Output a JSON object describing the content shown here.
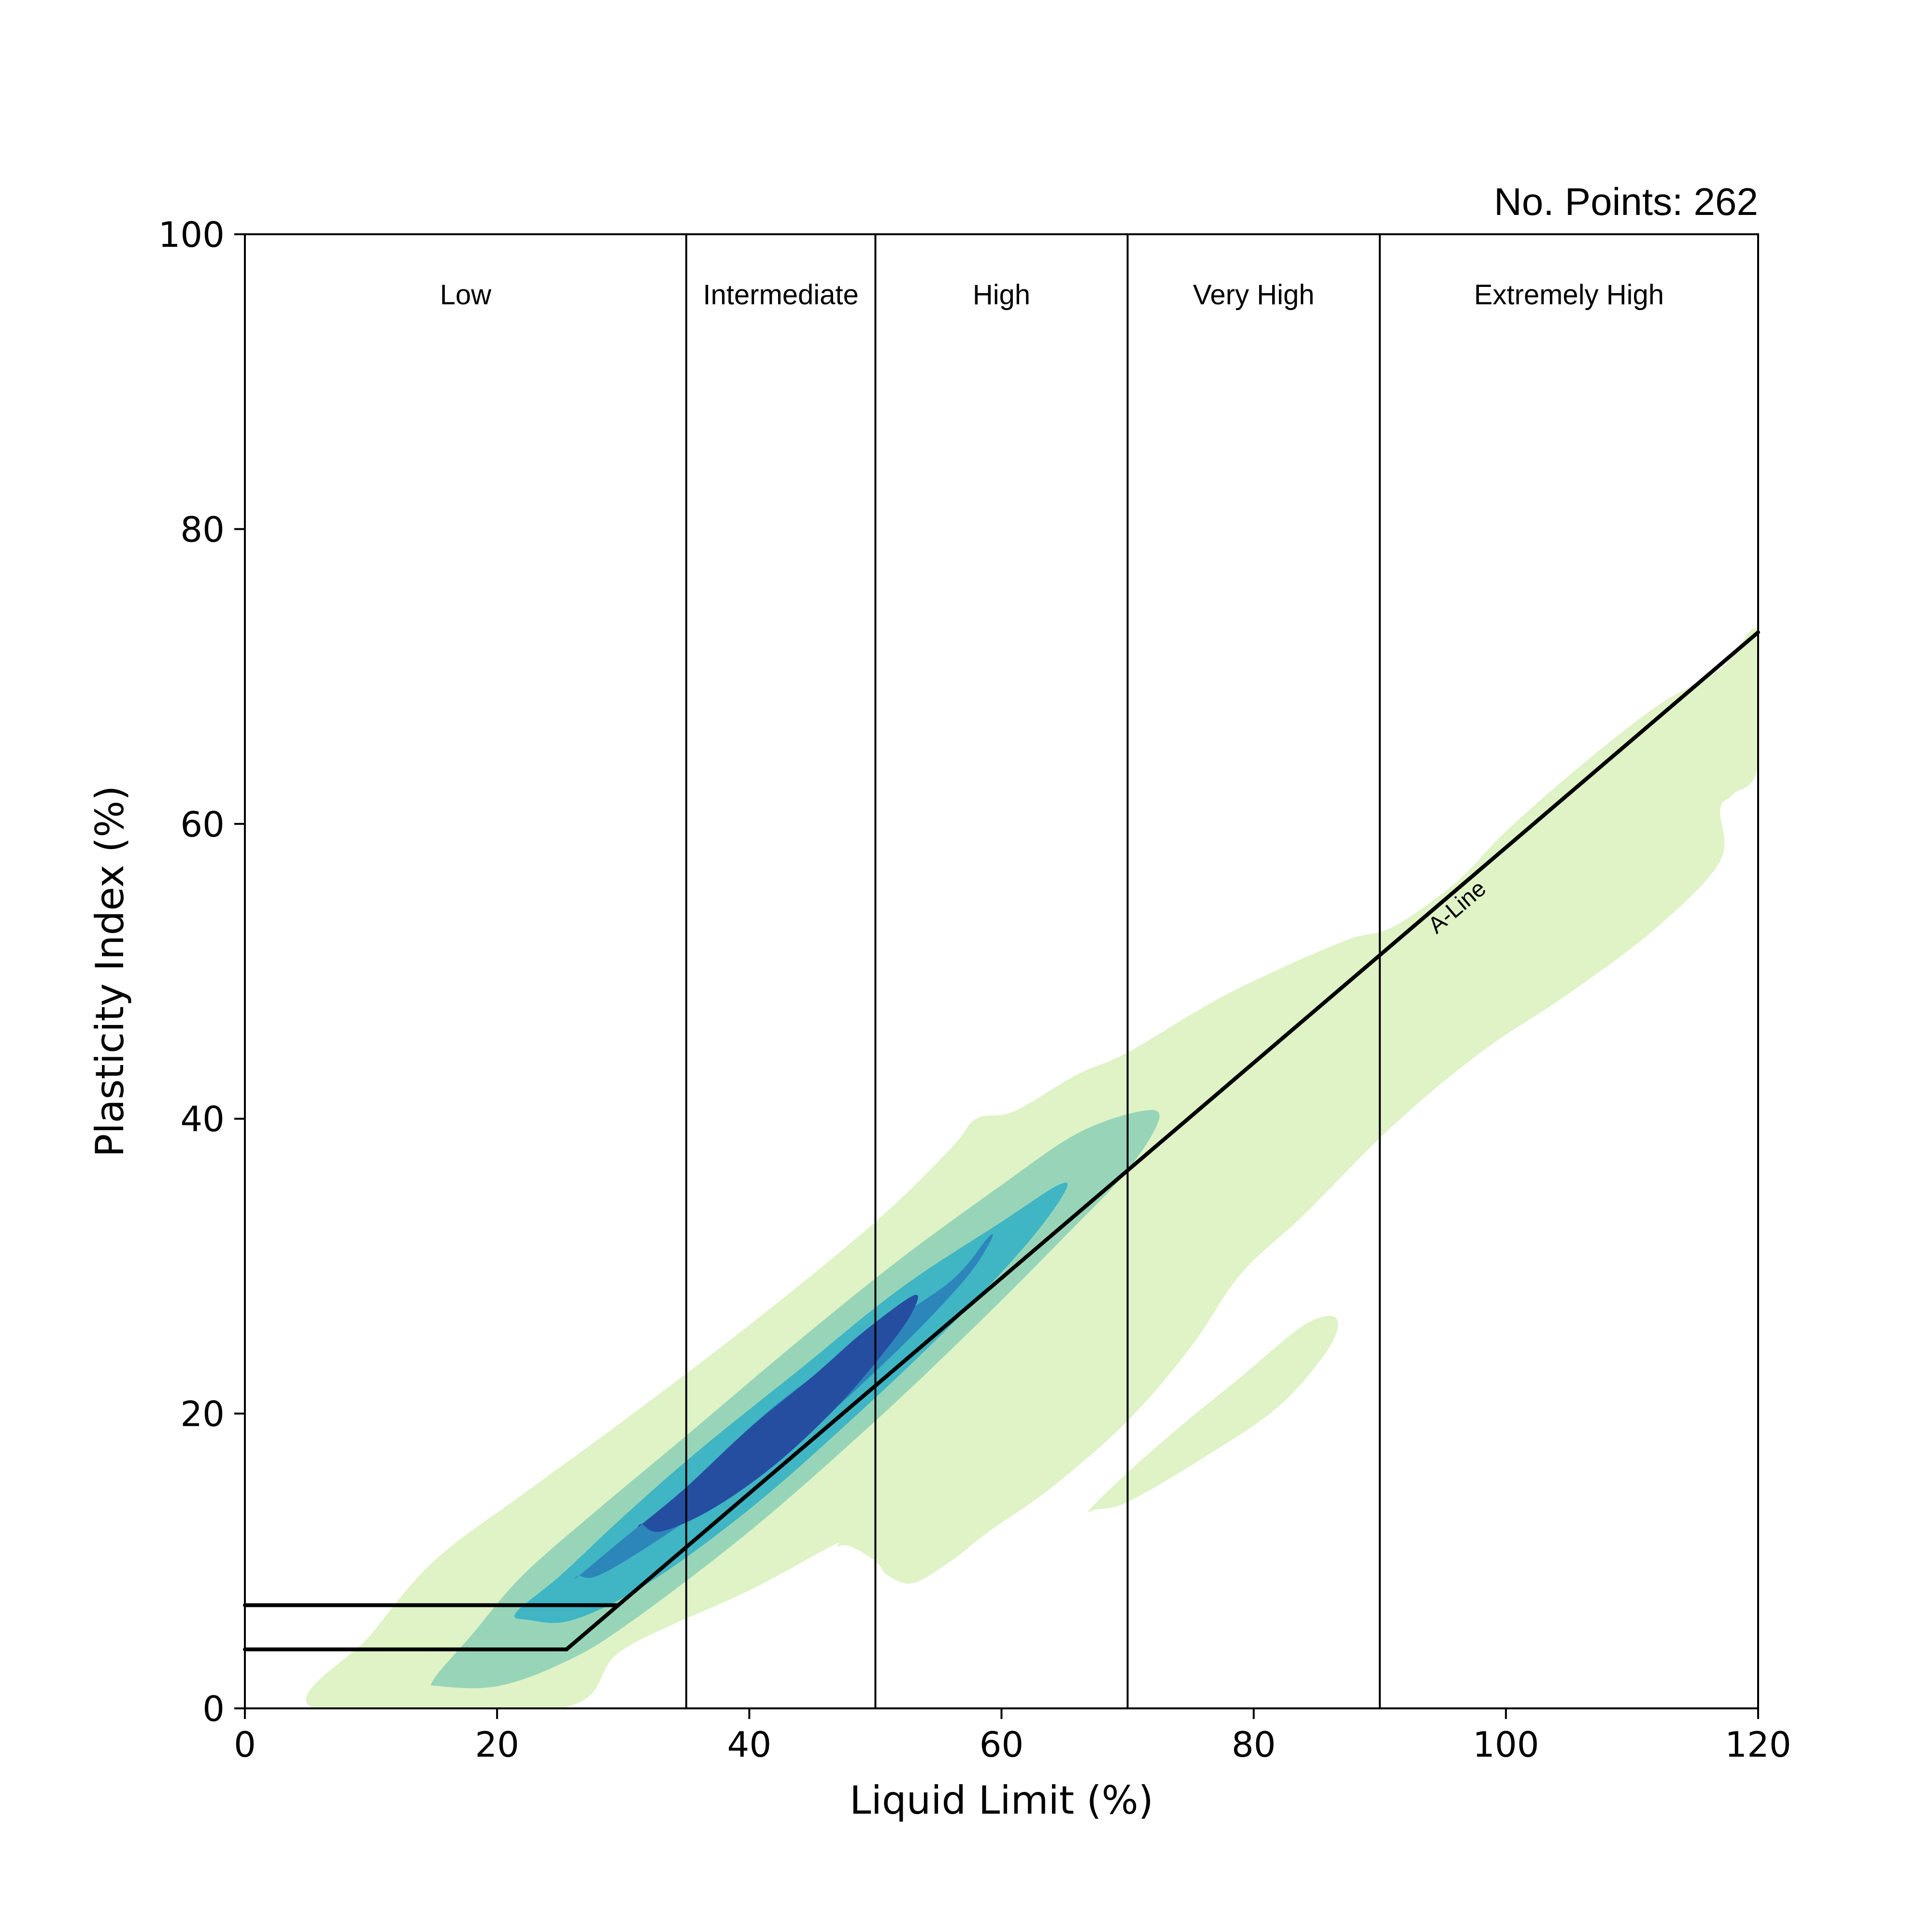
{
  "chart_data": {
    "type": "contour",
    "title": "",
    "annotation_top_right": "No. Points: 262",
    "xlabel": "Liquid Limit (%)",
    "ylabel": "Plasticity Index (%)",
    "xlim": [
      0,
      120
    ],
    "ylim": [
      0,
      100
    ],
    "xticks": [
      0,
      20,
      40,
      60,
      80,
      100,
      120
    ],
    "yticks": [
      0,
      20,
      40,
      60,
      80,
      100
    ],
    "grid": false,
    "plasticity_boundaries": [
      35,
      50,
      70,
      90
    ],
    "regions": [
      {
        "label": "Low",
        "x": 17.5
      },
      {
        "label": "Intermediate",
        "x": 42.5
      },
      {
        "label": "High",
        "x": 60
      },
      {
        "label": "Very High",
        "x": 80
      },
      {
        "label": "Extremely High",
        "x": 105
      }
    ],
    "a_line": {
      "label": "A-Line",
      "points": [
        [
          25.5,
          4
        ],
        [
          120,
          73
        ]
      ]
    },
    "horizontal_lines": [
      {
        "y": 4,
        "x": [
          0,
          25.5
        ]
      },
      {
        "y": 7,
        "x": [
          0,
          29.5
        ]
      }
    ],
    "density_levels": [
      {
        "level": 1,
        "color": "#dff3c6"
      },
      {
        "level": 2,
        "color": "#98d5b8"
      },
      {
        "level": 3,
        "color": "#40b5c4"
      },
      {
        "level": 4,
        "color": "#2c86ba"
      },
      {
        "level": 5,
        "color": "#254ea0"
      }
    ],
    "density_peak": {
      "x": 42,
      "y": 20
    },
    "density_regions": [
      {
        "level": 1,
        "outline": [
          [
            5.5,
            0
          ],
          [
            10,
            5
          ],
          [
            15,
            10
          ],
          [
            22,
            14.5
          ],
          [
            30,
            19.5
          ],
          [
            40,
            26
          ],
          [
            50,
            33
          ],
          [
            56,
            38
          ],
          [
            58,
            40
          ],
          [
            61,
            40.5
          ],
          [
            66,
            43
          ],
          [
            70,
            44.5
          ],
          [
            78,
            48.5
          ],
          [
            87,
            52
          ],
          [
            91,
            53
          ],
          [
            96,
            56
          ],
          [
            100,
            59.5
          ],
          [
            106,
            64
          ],
          [
            112,
            68
          ],
          [
            117,
            70.5
          ],
          [
            120,
            73
          ],
          [
            120,
            64
          ],
          [
            118,
            62
          ],
          [
            117,
            61
          ],
          [
            117,
            57.5
          ],
          [
            112,
            53
          ],
          [
            105,
            48.5
          ],
          [
            98,
            44.5
          ],
          [
            91,
            39.5
          ],
          [
            84,
            33.5
          ],
          [
            79,
            29.5
          ],
          [
            75,
            24.5
          ],
          [
            70,
            19.5
          ],
          [
            64,
            15
          ],
          [
            59,
            12
          ],
          [
            56,
            10
          ],
          [
            53,
            8.5
          ],
          [
            51,
            9
          ],
          [
            50,
            10
          ],
          [
            48,
            11
          ],
          [
            47,
            11
          ],
          [
            46.5,
            11
          ],
          [
            40,
            8
          ],
          [
            30,
            4
          ],
          [
            25,
            0
          ]
        ]
      },
      {
        "level": 1,
        "outline": [
          [
            67,
            13.5
          ],
          [
            70,
            16
          ],
          [
            74,
            19
          ],
          [
            79,
            22.5
          ],
          [
            84,
            26
          ],
          [
            86.5,
            26.5
          ],
          [
            86,
            24.5
          ],
          [
            82,
            20.5
          ],
          [
            76,
            17
          ],
          [
            70,
            14
          ],
          [
            67.5,
            13.5
          ]
        ]
      },
      {
        "level": 2,
        "outline": [
          [
            15,
            2
          ],
          [
            18,
            5
          ],
          [
            22,
            9
          ],
          [
            28,
            13.5
          ],
          [
            35,
            18.5
          ],
          [
            44,
            25
          ],
          [
            52,
            30.5
          ],
          [
            60,
            35.5
          ],
          [
            66,
            39
          ],
          [
            71,
            40.5
          ],
          [
            72.5,
            40
          ],
          [
            70,
            36.5
          ],
          [
            65,
            32
          ],
          [
            58,
            26
          ],
          [
            50,
            19.5
          ],
          [
            40,
            12
          ],
          [
            30,
            5.5
          ],
          [
            25,
            3
          ],
          [
            20,
            1.5
          ],
          [
            15.5,
            1.5
          ]
        ]
      },
      {
        "level": 3,
        "outline": [
          [
            21.5,
            6.5
          ],
          [
            25,
            9
          ],
          [
            30,
            13
          ],
          [
            36,
            17.5
          ],
          [
            44,
            23
          ],
          [
            52,
            28.5
          ],
          [
            60,
            33
          ],
          [
            64.5,
            35.5
          ],
          [
            65,
            35
          ],
          [
            62,
            31.5
          ],
          [
            56,
            26
          ],
          [
            48,
            19.5
          ],
          [
            40,
            13.5
          ],
          [
            32,
            8.5
          ],
          [
            26,
            6
          ],
          [
            22.5,
            6
          ]
        ]
      },
      {
        "level": 4,
        "outline": [
          [
            26.5,
            9
          ],
          [
            30,
            11.5
          ],
          [
            35,
            15
          ],
          [
            42,
            20.5
          ],
          [
            50,
            25.5
          ],
          [
            56,
            29
          ],
          [
            59,
            32
          ],
          [
            59,
            31.5
          ],
          [
            57,
            29
          ],
          [
            52,
            24.5
          ],
          [
            45,
            19
          ],
          [
            38,
            14.5
          ],
          [
            32,
            11
          ],
          [
            28,
            9
          ],
          [
            26.5,
            9
          ]
        ]
      },
      {
        "level": 5,
        "outline": [
          [
            31.5,
            12.5
          ],
          [
            35,
            15
          ],
          [
            40,
            19
          ],
          [
            45,
            22.5
          ],
          [
            49,
            25.5
          ],
          [
            53,
            28
          ],
          [
            53,
            27
          ],
          [
            51,
            24.5
          ],
          [
            47,
            20.5
          ],
          [
            42,
            16.5
          ],
          [
            37,
            13.5
          ],
          [
            33,
            12
          ],
          [
            31.5,
            12.5
          ]
        ]
      }
    ]
  }
}
